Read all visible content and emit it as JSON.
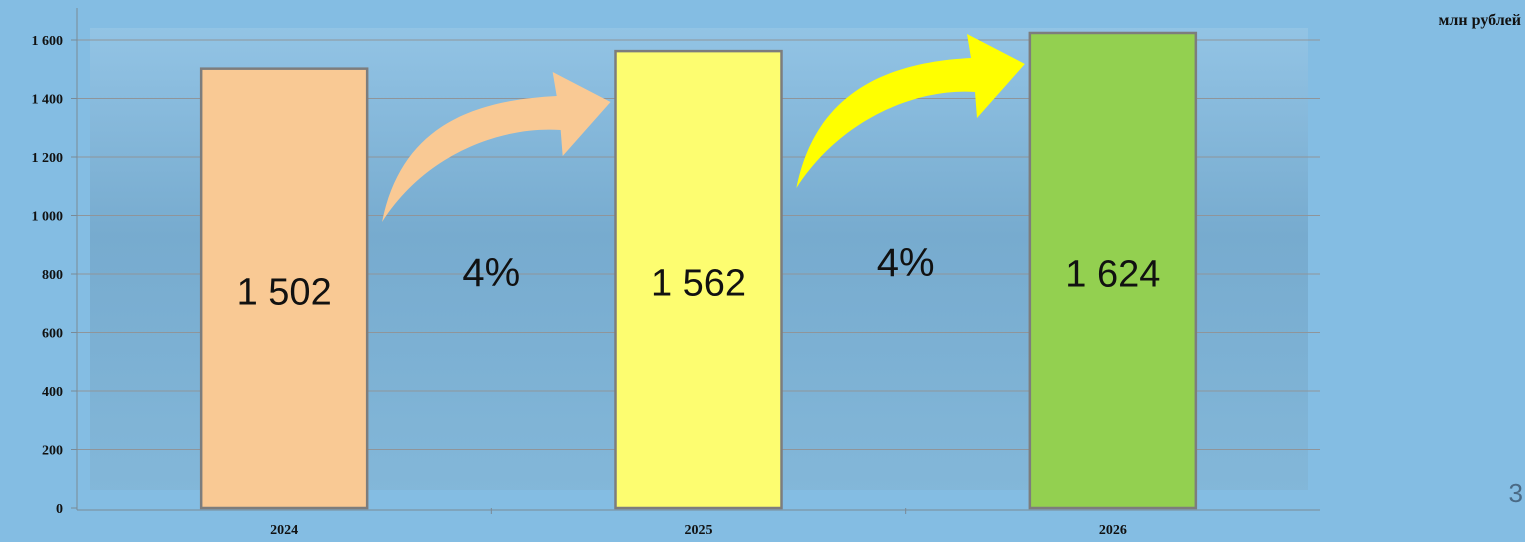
{
  "chart_data": {
    "type": "bar",
    "categories": [
      "2024",
      "2025",
      "2026"
    ],
    "values": [
      1502,
      1562,
      1624
    ],
    "data_labels": [
      "1 502",
      "1 562",
      "1 624"
    ],
    "bar_colors": [
      "#f9c994",
      "#fdfd70",
      "#93d050"
    ],
    "y_ticks": [
      0,
      200,
      400,
      600,
      800,
      1000,
      1200,
      1400,
      1600
    ],
    "y_tick_labels": [
      "0",
      "200",
      "400",
      "600",
      "800",
      "1 000",
      "1 200",
      "1 400",
      "1 600"
    ],
    "ylim": [
      0,
      1600
    ],
    "grid": true,
    "unit_label": "млн рублей",
    "annotations": [
      {
        "text": "4%",
        "from": "2024",
        "to": "2025",
        "arrow_color": "#f9c994"
      },
      {
        "text": "4%",
        "from": "2025",
        "to": "2026",
        "arrow_color": "#ffff00"
      }
    ]
  },
  "page_number": "3"
}
